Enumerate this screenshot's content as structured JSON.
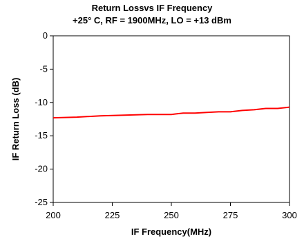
{
  "chart_data": {
    "type": "line",
    "title": "Return Lossvs IF Frequency",
    "subtitle": "+25° C, RF = 1900MHz, LO = +13 dBm",
    "xlabel": "IF Frequency(MHz)",
    "ylabel": "IF Return Loss (dB)",
    "xlim": [
      200,
      300
    ],
    "ylim": [
      -25,
      0
    ],
    "x_ticks": [
      "200",
      "225",
      "250",
      "275",
      "300"
    ],
    "y_ticks": [
      "0",
      "-5",
      "-10",
      "-15",
      "-20",
      "-25"
    ],
    "grid": false,
    "series": [
      {
        "color": "#ff0000",
        "x": [
          200,
          210,
          220,
          230,
          240,
          250,
          255,
          260,
          265,
          270,
          275,
          280,
          285,
          290,
          295,
          300
        ],
        "y": [
          -12.3,
          -12.2,
          -12.0,
          -11.9,
          -11.8,
          -11.8,
          -11.6,
          -11.6,
          -11.5,
          -11.4,
          -11.4,
          -11.2,
          -11.1,
          -10.9,
          -10.9,
          -10.7
        ]
      }
    ]
  }
}
